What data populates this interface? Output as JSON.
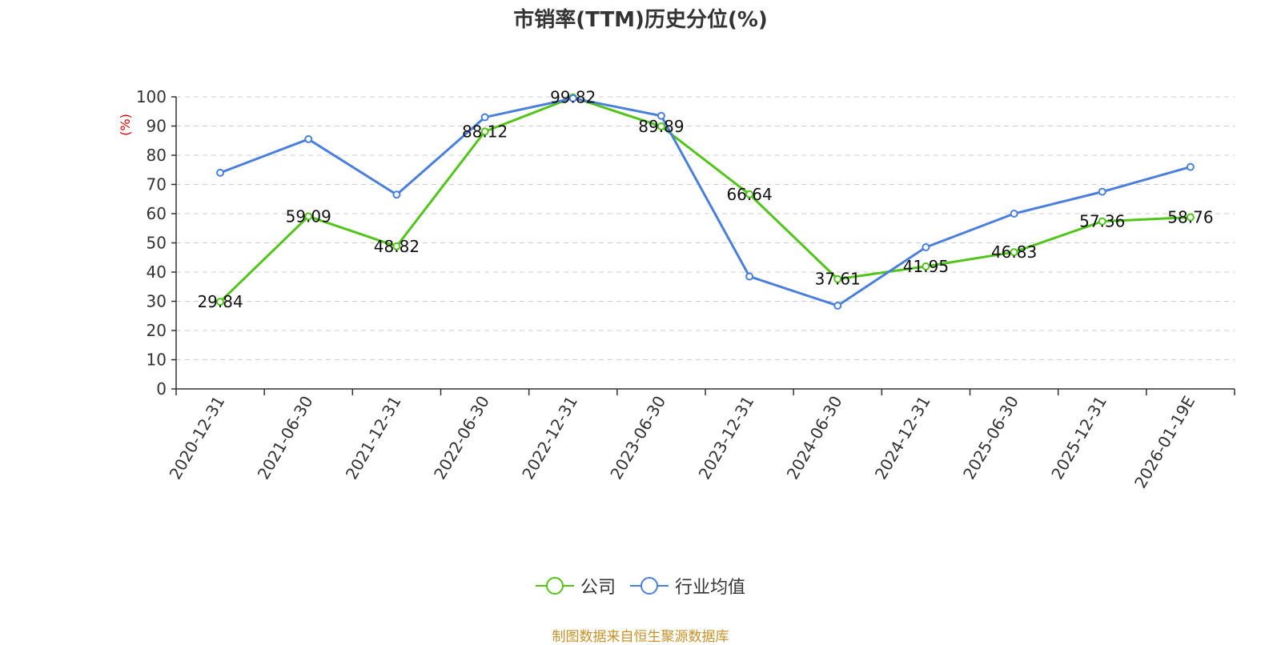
{
  "chart_data": {
    "type": "line",
    "title": "市销率(TTM)历史分位(%)",
    "ylabel": "(%)",
    "ylim": [
      0,
      100
    ],
    "yticks": [
      "0",
      "10",
      "20",
      "30",
      "40",
      "50",
      "60",
      "70",
      "80",
      "90",
      "100"
    ],
    "grid": true,
    "legend_position": "bottom",
    "categories": [
      "2020-12-31",
      "2021-06-30",
      "2021-12-31",
      "2022-06-30",
      "2022-12-31",
      "2023-06-30",
      "2023-12-31",
      "2024-06-30",
      "2024-12-31",
      "2025-06-30",
      "2025-12-31",
      "2026-01-19E"
    ],
    "series": [
      {
        "name": "公司",
        "color": "#52c41a",
        "values": [
          29.84,
          59.09,
          48.82,
          88.12,
          99.82,
          89.89,
          66.64,
          37.61,
          41.95,
          46.83,
          57.36,
          58.76
        ],
        "labels": [
          "29.84",
          "59.09",
          "48.82",
          "88.12",
          "99.82",
          "89.89",
          "66.64",
          "37.61",
          "41.95",
          "46.83",
          "57.36",
          "58.76"
        ]
      },
      {
        "name": "行业均值",
        "color": "#4a7fdc",
        "values": [
          74,
          85.5,
          66.5,
          93,
          99.5,
          93.5,
          38.5,
          28.5,
          48.5,
          60,
          67.5,
          76
        ]
      }
    ]
  },
  "footer": {
    "source": "制图数据来自恒生聚源数据库"
  }
}
